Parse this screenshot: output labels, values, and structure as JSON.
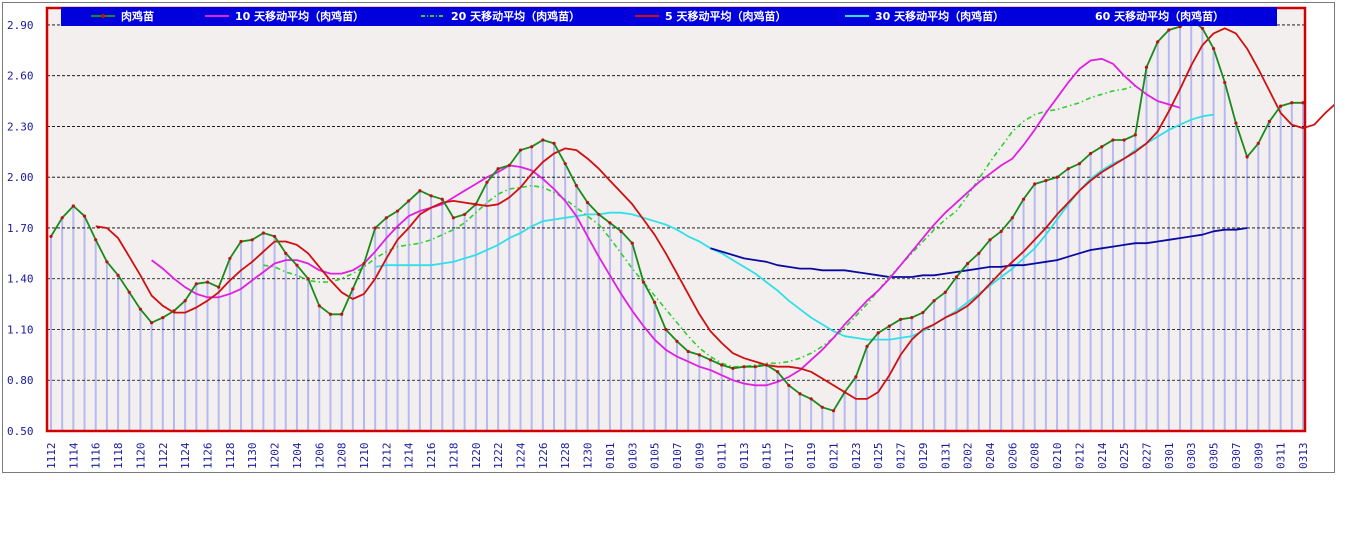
{
  "chart_data": {
    "type": "line",
    "title": "",
    "xlabel": "",
    "ylabel": "",
    "ylim": [
      0.5,
      3.0
    ],
    "yticks": [
      0.5,
      0.8,
      1.1,
      1.4,
      1.7,
      2.0,
      2.3,
      2.6,
      2.9
    ],
    "ytick_labels": [
      "0.50",
      "0.80",
      "1.10",
      "1.40",
      "1.70",
      "2.00",
      "2.30",
      "2.60",
      "2.90"
    ],
    "grid": true,
    "legend_position": "top",
    "x_labels": [
      "1112",
      "1114",
      "1116",
      "1118",
      "1120",
      "1122",
      "1124",
      "1126",
      "1128",
      "1130",
      "1202",
      "1204",
      "1206",
      "1208",
      "1210",
      "1212",
      "1214",
      "1216",
      "1218",
      "1220",
      "1222",
      "1224",
      "1226",
      "1228",
      "1230",
      "0101",
      "0103",
      "0105",
      "0107",
      "0109",
      "0111",
      "0113",
      "0115",
      "0117",
      "0119",
      "0121",
      "0123",
      "0125",
      "0127",
      "0129",
      "0131",
      "0202",
      "0204",
      "0206",
      "0208",
      "0210",
      "0212",
      "0214",
      "0225",
      "0227",
      "0301",
      "0303",
      "0305",
      "0307",
      "0309",
      "0311",
      "0313"
    ],
    "n_points": 113,
    "series": [
      {
        "name": "肉鸡苗",
        "color": "#1a8a1a",
        "style": "solid-markers",
        "values": [
          1.65,
          1.76,
          1.83,
          1.77,
          1.63,
          1.5,
          1.42,
          1.32,
          1.22,
          1.14,
          1.17,
          1.21,
          1.27,
          1.37,
          1.38,
          1.35,
          1.52,
          1.62,
          1.63,
          1.67,
          1.65,
          1.55,
          1.48,
          1.4,
          1.24,
          1.19,
          1.19,
          1.34,
          1.49,
          1.7,
          1.76,
          1.8,
          1.86,
          1.92,
          1.89,
          1.87,
          1.76,
          1.78,
          1.84,
          1.97,
          2.05,
          2.07,
          2.16,
          2.18,
          2.22,
          2.2,
          2.08,
          1.95,
          1.85,
          1.78,
          1.73,
          1.68,
          1.61,
          1.38,
          1.26,
          1.1,
          1.03,
          0.97,
          0.95,
          0.92,
          0.89,
          0.87,
          0.88,
          0.88,
          0.89,
          0.85,
          0.77,
          0.72,
          0.69,
          0.64,
          0.62,
          0.73,
          0.82,
          1.0,
          1.08,
          1.12,
          1.16,
          1.17,
          1.2,
          1.27,
          1.32,
          1.41,
          1.49,
          1.55,
          1.63,
          1.68,
          1.76,
          1.87,
          1.96,
          1.98,
          2.0,
          2.05,
          2.08,
          2.14,
          2.18,
          2.22,
          2.22,
          2.25,
          2.65,
          2.8,
          2.87,
          2.89,
          2.93,
          2.88,
          2.76,
          2.56,
          2.32,
          2.12,
          2.2,
          2.33,
          2.42,
          2.44,
          2.44
        ]
      },
      {
        "name": "10 天移动平均（肉鸡苗）",
        "color": "#e020e0",
        "style": "solid",
        "start": 9,
        "values": [
          1.51,
          1.46,
          1.4,
          1.35,
          1.31,
          1.29,
          1.29,
          1.31,
          1.34,
          1.39,
          1.44,
          1.49,
          1.51,
          1.51,
          1.49,
          1.45,
          1.43,
          1.43,
          1.45,
          1.49,
          1.56,
          1.64,
          1.71,
          1.77,
          1.8,
          1.82,
          1.84,
          1.88,
          1.92,
          1.96,
          2.0,
          2.03,
          2.07,
          2.06,
          2.04,
          1.99,
          1.93,
          1.86,
          1.77,
          1.65,
          1.53,
          1.42,
          1.31,
          1.21,
          1.12,
          1.04,
          0.98,
          0.94,
          0.91,
          0.88,
          0.86,
          0.83,
          0.8,
          0.78,
          0.77,
          0.77,
          0.79,
          0.82,
          0.86,
          0.92,
          0.98,
          1.05,
          1.13,
          1.2,
          1.27,
          1.33,
          1.4,
          1.48,
          1.56,
          1.64,
          1.72,
          1.79,
          1.85,
          1.91,
          1.97,
          2.02,
          2.07,
          2.11,
          2.19,
          2.28,
          2.38,
          2.47,
          2.56,
          2.64,
          2.69,
          2.7,
          2.67,
          2.6,
          2.54,
          2.49,
          2.45,
          2.43,
          2.41
        ]
      },
      {
        "name": "20 天移动平均（肉鸡苗）",
        "color": "#30d030",
        "style": "dash-dot",
        "start": 19,
        "values": [
          1.48,
          1.47,
          1.44,
          1.42,
          1.39,
          1.38,
          1.38,
          1.4,
          1.43,
          1.47,
          1.52,
          1.56,
          1.59,
          1.6,
          1.61,
          1.63,
          1.66,
          1.69,
          1.73,
          1.79,
          1.85,
          1.9,
          1.93,
          1.94,
          1.95,
          1.94,
          1.91,
          1.87,
          1.82,
          1.77,
          1.72,
          1.64,
          1.55,
          1.46,
          1.38,
          1.3,
          1.22,
          1.14,
          1.06,
          0.99,
          0.94,
          0.9,
          0.88,
          0.88,
          0.89,
          0.9,
          0.9,
          0.91,
          0.93,
          0.96,
          1.0,
          1.05,
          1.11,
          1.18,
          1.25,
          1.33,
          1.41,
          1.48,
          1.55,
          1.62,
          1.69,
          1.75,
          1.8,
          1.89,
          1.99,
          2.09,
          2.18,
          2.27,
          2.33,
          2.37,
          2.39,
          2.4,
          2.42,
          2.44,
          2.47,
          2.49,
          2.51,
          2.52,
          2.54
        ]
      },
      {
        "name": "5 天移动平均（肉鸡苗）",
        "color": "#d01010",
        "style": "solid",
        "start": 4,
        "values": [
          1.71,
          1.7,
          1.64,
          1.53,
          1.42,
          1.3,
          1.24,
          1.2,
          1.2,
          1.23,
          1.27,
          1.32,
          1.39,
          1.45,
          1.5,
          1.56,
          1.62,
          1.62,
          1.6,
          1.55,
          1.47,
          1.39,
          1.32,
          1.28,
          1.31,
          1.4,
          1.52,
          1.63,
          1.7,
          1.78,
          1.82,
          1.85,
          1.86,
          1.85,
          1.84,
          1.83,
          1.84,
          1.88,
          1.94,
          2.02,
          2.09,
          2.14,
          2.17,
          2.16,
          2.11,
          2.05,
          1.98,
          1.91,
          1.84,
          1.75,
          1.66,
          1.55,
          1.43,
          1.31,
          1.19,
          1.09,
          1.02,
          0.96,
          0.93,
          0.91,
          0.89,
          0.88,
          0.88,
          0.87,
          0.85,
          0.81,
          0.77,
          0.73,
          0.69,
          0.69,
          0.73,
          0.83,
          0.95,
          1.04,
          1.1,
          1.13,
          1.17,
          1.2,
          1.24,
          1.3,
          1.37,
          1.44,
          1.5,
          1.56,
          1.63,
          1.7,
          1.78,
          1.85,
          1.92,
          1.98,
          2.03,
          2.07,
          2.11,
          2.15,
          2.2,
          2.27,
          2.39,
          2.52,
          2.66,
          2.78,
          2.85,
          2.88,
          2.85,
          2.76,
          2.64,
          2.51,
          2.38,
          2.31,
          2.29,
          2.31,
          2.38,
          2.44,
          2.44
        ]
      },
      {
        "name": "30 天移动平均（肉鸡苗）",
        "color": "#30e0e8",
        "style": "solid",
        "start": 29,
        "values": [
          1.47,
          1.48,
          1.48,
          1.48,
          1.48,
          1.48,
          1.49,
          1.5,
          1.52,
          1.54,
          1.57,
          1.6,
          1.64,
          1.67,
          1.71,
          1.74,
          1.75,
          1.76,
          1.77,
          1.78,
          1.78,
          1.79,
          1.79,
          1.78,
          1.76,
          1.74,
          1.72,
          1.69,
          1.65,
          1.62,
          1.58,
          1.55,
          1.51,
          1.47,
          1.43,
          1.38,
          1.33,
          1.27,
          1.22,
          1.17,
          1.13,
          1.09,
          1.06,
          1.05,
          1.04,
          1.04,
          1.04,
          1.05,
          1.06,
          1.09,
          1.13,
          1.17,
          1.21,
          1.26,
          1.31,
          1.36,
          1.41,
          1.46,
          1.52,
          1.58,
          1.66,
          1.75,
          1.84,
          1.92,
          1.99,
          2.04,
          2.08,
          2.11,
          2.16,
          2.2,
          2.24,
          2.28,
          2.31,
          2.34,
          2.36,
          2.37
        ]
      },
      {
        "name": "60 天移动平均（肉鸡苗）",
        "color": "#0a0aa0",
        "style": "solid",
        "start": 59,
        "values": [
          1.58,
          1.56,
          1.54,
          1.52,
          1.51,
          1.5,
          1.48,
          1.47,
          1.46,
          1.46,
          1.45,
          1.45,
          1.45,
          1.44,
          1.43,
          1.42,
          1.41,
          1.41,
          1.41,
          1.42,
          1.42,
          1.43,
          1.44,
          1.45,
          1.46,
          1.47,
          1.47,
          1.48,
          1.48,
          1.49,
          1.5,
          1.51,
          1.53,
          1.55,
          1.57,
          1.58,
          1.59,
          1.6,
          1.61,
          1.61,
          1.62,
          1.63,
          1.64,
          1.65,
          1.66,
          1.68,
          1.69,
          1.69,
          1.7
        ]
      }
    ]
  },
  "colors": {
    "frame_border": "#d00000",
    "legend_bg": "#0000dd",
    "grid": "#000000",
    "bars": "#b8b8f0",
    "plot_bg": "#f3efef",
    "tick_text": "#1a1a9a"
  }
}
